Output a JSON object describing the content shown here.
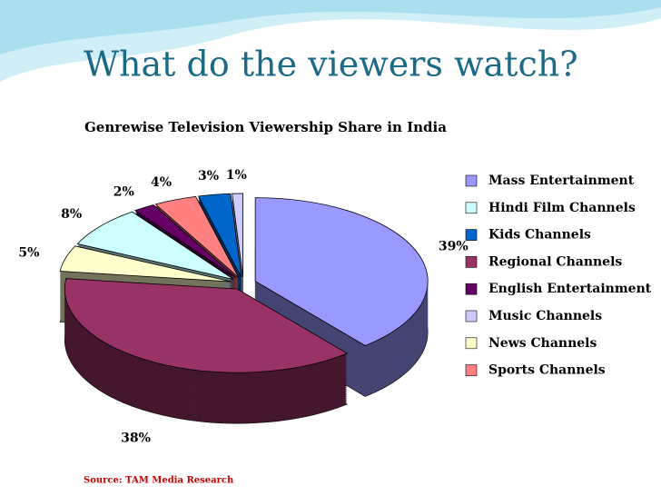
{
  "title": "What do the viewers watch?",
  "chart_data": {
    "type": "pie3d",
    "title": "Genrewise Television Viewership Share in India",
    "source": "Source: TAM Media Research",
    "categories": [
      "Mass Entertainment",
      "Hindi Film Channels",
      "Kids Channels",
      "Regional Channels",
      "English Entertainment",
      "Music Channels",
      "News Channels",
      "Sports Channels"
    ],
    "values": [
      39,
      8,
      3,
      38,
      2,
      1,
      5,
      4
    ],
    "value_labels": [
      "39%",
      "8%",
      "3%",
      "38%",
      "2%",
      "1%",
      "5%",
      "4%"
    ],
    "colors": [
      "#9999ff",
      "#ccffff",
      "#0066cc",
      "#993366",
      "#660066",
      "#ccccff",
      "#ffffcc",
      "#ff8080"
    ],
    "legend": "right"
  }
}
